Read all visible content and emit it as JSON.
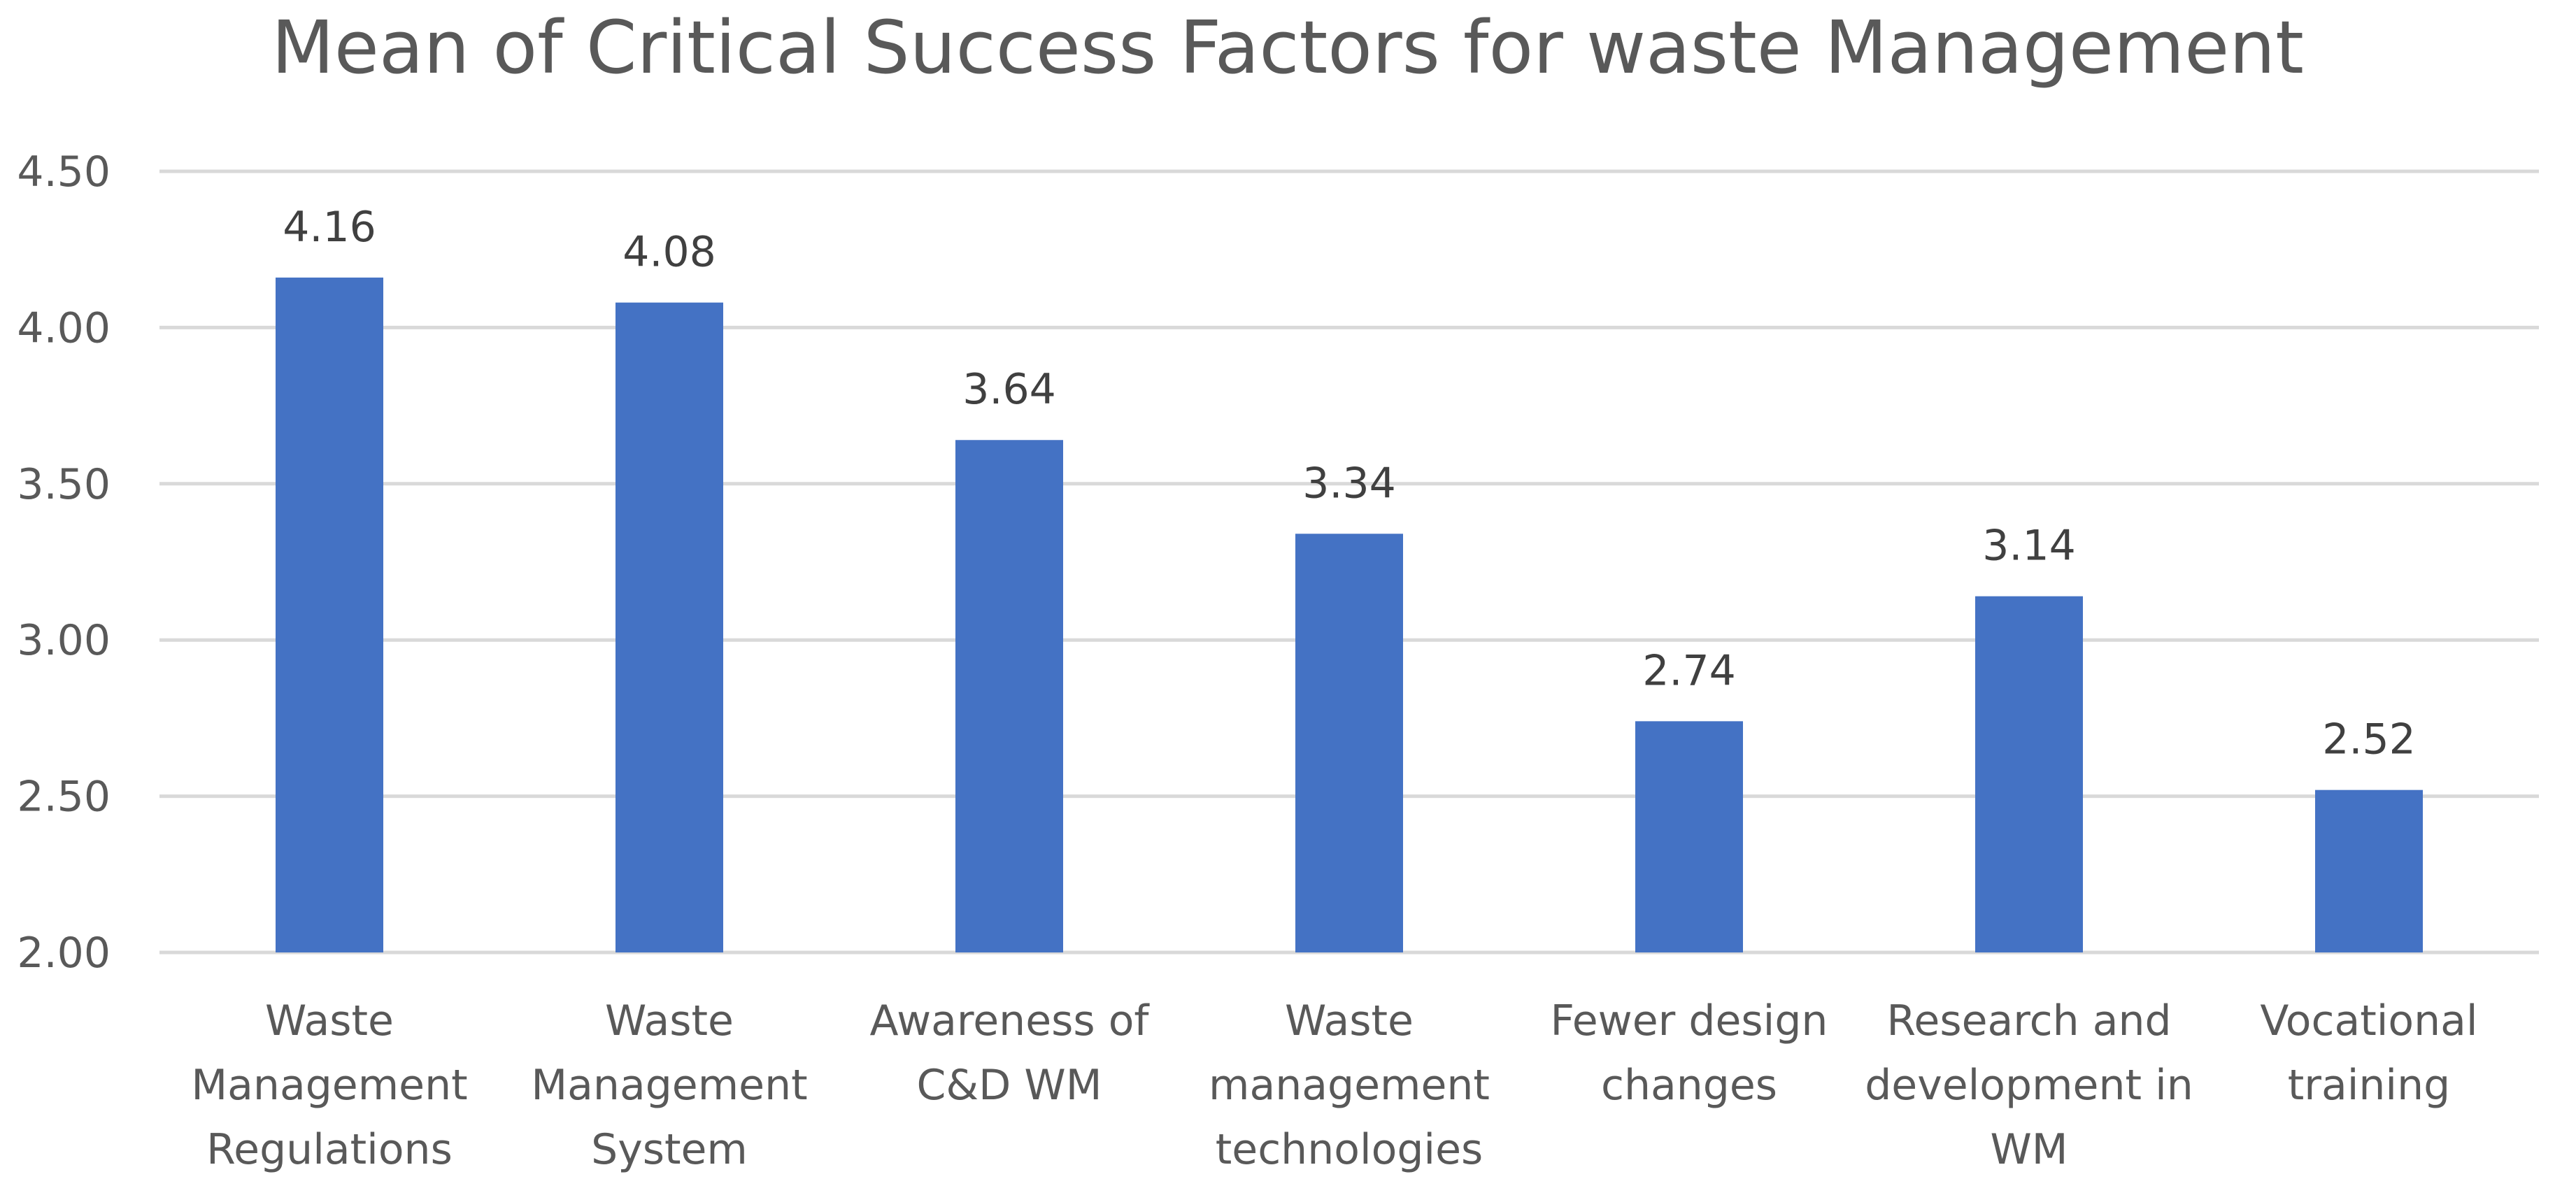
{
  "chart_data": {
    "type": "bar",
    "title": "Mean of Critical Success Factors for waste Management",
    "xlabel": "",
    "ylabel": "",
    "ylim": [
      2.0,
      4.5
    ],
    "yticks": [
      "2.00",
      "2.50",
      "3.00",
      "3.50",
      "4.00",
      "4.50"
    ],
    "grid": true,
    "legend": "none",
    "categories": [
      [
        "Waste",
        "Management",
        "Regulations"
      ],
      [
        "Waste",
        "Management",
        "System"
      ],
      [
        "Awareness of",
        "C&D WM"
      ],
      [
        "Waste",
        "management",
        "technologies"
      ],
      [
        "Fewer design",
        "changes"
      ],
      [
        "Research and",
        "development in",
        "WM"
      ],
      [
        "Vocational",
        "training"
      ]
    ],
    "values": [
      4.16,
      4.08,
      3.64,
      3.34,
      2.74,
      3.14,
      2.52
    ],
    "value_labels": [
      "4.16",
      "4.08",
      "3.64",
      "3.34",
      "2.74",
      "3.14",
      "2.52"
    ],
    "colors": {
      "bar": "#4472c4",
      "grid": "#d9d9d9",
      "text": "#595959",
      "label": "#404040"
    }
  }
}
